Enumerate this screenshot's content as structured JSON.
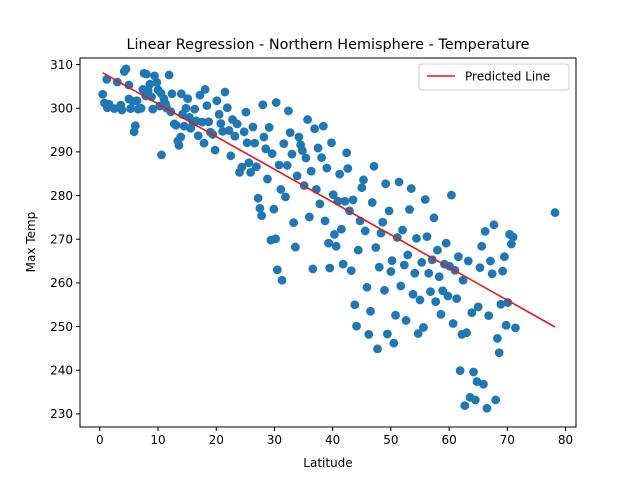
{
  "chart_data": {
    "type": "scatter",
    "title": "Linear Regression - Northern Hemisphere - Temperature",
    "xlabel": "Latitude",
    "ylabel": "Max Temp",
    "xlim": [
      -3.4,
      81.8
    ],
    "ylim": [
      227.0,
      311.5
    ],
    "xticks": [
      0,
      10,
      20,
      30,
      40,
      50,
      60,
      70,
      80
    ],
    "yticks": [
      230,
      240,
      250,
      260,
      270,
      280,
      290,
      300,
      310
    ],
    "grid": false,
    "legend": {
      "position": "top-right",
      "entries": [
        "Predicted Line"
      ]
    },
    "colors": {
      "points": "#1f77b4",
      "line": "#e41a1c",
      "axis": "#000000"
    },
    "series": [
      {
        "kind": "scatter",
        "points": [
          [
            0.5,
            303.2
          ],
          [
            0.8,
            301.2
          ],
          [
            1.2,
            306.6
          ],
          [
            1.3,
            300.1
          ],
          [
            1.6,
            300.9
          ],
          [
            2.5,
            299.9
          ],
          [
            3.0,
            306.0
          ],
          [
            3.6,
            300.7
          ],
          [
            3.8,
            299.6
          ],
          [
            4.2,
            308.4
          ],
          [
            4.5,
            309.0
          ],
          [
            5.0,
            305.3
          ],
          [
            5.0,
            302.1
          ],
          [
            5.3,
            299.9
          ],
          [
            5.7,
            301.6
          ],
          [
            5.9,
            294.6
          ],
          [
            6.1,
            296.0
          ],
          [
            6.4,
            301.7
          ],
          [
            6.6,
            299.8
          ],
          [
            7.1,
            300.0
          ],
          [
            7.4,
            304.3
          ],
          [
            7.6,
            308.0
          ],
          [
            7.9,
            302.8
          ],
          [
            8.0,
            307.8
          ],
          [
            8.3,
            304.1
          ],
          [
            8.6,
            305.5
          ],
          [
            8.9,
            302.6
          ],
          [
            9.1,
            299.8
          ],
          [
            9.4,
            307.4
          ],
          [
            9.8,
            305.9
          ],
          [
            10.0,
            304.2
          ],
          [
            10.3,
            300.5
          ],
          [
            10.5,
            303.4
          ],
          [
            10.6,
            289.3
          ],
          [
            11.0,
            302.2
          ],
          [
            11.3,
            301.0
          ],
          [
            11.5,
            300.0
          ],
          [
            11.9,
            307.6
          ],
          [
            12.2,
            299.2
          ],
          [
            12.4,
            303.3
          ],
          [
            12.8,
            296.4
          ],
          [
            13.1,
            296.1
          ],
          [
            13.4,
            292.5
          ],
          [
            13.6,
            291.5
          ],
          [
            13.9,
            293.4
          ],
          [
            14.0,
            303.3
          ],
          [
            14.2,
            298.6
          ],
          [
            14.5,
            295.9
          ],
          [
            14.8,
            300.0
          ],
          [
            15.1,
            302.2
          ],
          [
            15.4,
            297.9
          ],
          [
            15.6,
            295.4
          ],
          [
            16.0,
            296.8
          ],
          [
            16.3,
            299.8
          ],
          [
            16.6,
            297.1
          ],
          [
            16.9,
            293.7
          ],
          [
            17.2,
            303.0
          ],
          [
            17.6,
            296.8
          ],
          [
            17.9,
            292.0
          ],
          [
            18.1,
            304.3
          ],
          [
            18.4,
            300.6
          ],
          [
            18.7,
            296.9
          ],
          [
            19.0,
            294.5
          ],
          [
            19.4,
            294.0
          ],
          [
            19.8,
            290.4
          ],
          [
            20.1,
            301.7
          ],
          [
            20.5,
            298.6
          ],
          [
            20.8,
            296.5
          ],
          [
            21.1,
            294.7
          ],
          [
            21.5,
            303.7
          ],
          [
            21.9,
            300.1
          ],
          [
            22.2,
            294.9
          ],
          [
            22.5,
            289.1
          ],
          [
            22.8,
            297.4
          ],
          [
            23.2,
            293.6
          ],
          [
            23.6,
            296.4
          ],
          [
            24.0,
            285.3
          ],
          [
            24.4,
            286.5
          ],
          [
            24.8,
            294.6
          ],
          [
            25.1,
            299.1
          ],
          [
            25.3,
            292.1
          ],
          [
            25.6,
            287.5
          ],
          [
            25.9,
            285.3
          ],
          [
            26.3,
            295.7
          ],
          [
            26.6,
            292.0
          ],
          [
            26.9,
            286.6
          ],
          [
            27.2,
            279.4
          ],
          [
            27.5,
            277.1
          ],
          [
            27.8,
            275.4
          ],
          [
            28.0,
            300.8
          ],
          [
            28.2,
            293.4
          ],
          [
            28.5,
            290.7
          ],
          [
            28.8,
            283.8
          ],
          [
            29.1,
            295.6
          ],
          [
            29.4,
            269.8
          ],
          [
            29.6,
            289.6
          ],
          [
            29.9,
            276.9
          ],
          [
            30.2,
            270.1
          ],
          [
            30.3,
            301.3
          ],
          [
            30.5,
            263.0
          ],
          [
            30.8,
            287.0
          ],
          [
            31.1,
            281.4
          ],
          [
            31.3,
            260.6
          ],
          [
            31.6,
            291.9
          ],
          [
            31.9,
            279.7
          ],
          [
            32.2,
            286.9
          ],
          [
            32.4,
            299.4
          ],
          [
            32.7,
            294.4
          ],
          [
            33.0,
            289.5
          ],
          [
            33.3,
            273.8
          ],
          [
            33.6,
            268.2
          ],
          [
            33.9,
            284.5
          ],
          [
            34.2,
            293.4
          ],
          [
            34.5,
            291.6
          ],
          [
            34.8,
            290.3
          ],
          [
            35.1,
            282.3
          ],
          [
            35.4,
            288.6
          ],
          [
            35.7,
            297.4
          ],
          [
            36.0,
            275.1
          ],
          [
            36.3,
            285.6
          ],
          [
            36.6,
            263.2
          ],
          [
            36.9,
            295.3
          ],
          [
            37.2,
            281.4
          ],
          [
            37.5,
            290.9
          ],
          [
            37.8,
            278.1
          ],
          [
            38.1,
            288.7
          ],
          [
            38.4,
            295.9
          ],
          [
            38.7,
            274.2
          ],
          [
            39.0,
            286.3
          ],
          [
            39.3,
            269.1
          ],
          [
            39.5,
            263.4
          ],
          [
            39.8,
            292.1
          ],
          [
            40.1,
            280.2
          ],
          [
            40.3,
            271.1
          ],
          [
            40.6,
            268.4
          ],
          [
            40.9,
            278.7
          ],
          [
            41.2,
            284.9
          ],
          [
            41.5,
            272.3
          ],
          [
            41.8,
            264.3
          ],
          [
            42.1,
            278.7
          ],
          [
            42.4,
            289.8
          ],
          [
            42.6,
            286.2
          ],
          [
            42.9,
            276.5
          ],
          [
            43.2,
            262.8
          ],
          [
            43.5,
            279.0
          ],
          [
            43.8,
            255.0
          ],
          [
            44.1,
            250.1
          ],
          [
            44.4,
            267.5
          ],
          [
            44.7,
            274.2
          ],
          [
            45.0,
            281.8
          ],
          [
            45.3,
            283.6
          ],
          [
            45.6,
            271.9
          ],
          [
            45.9,
            259.0
          ],
          [
            46.2,
            248.2
          ],
          [
            46.5,
            253.5
          ],
          [
            46.8,
            278.4
          ],
          [
            47.1,
            286.7
          ],
          [
            47.4,
            268.1
          ],
          [
            47.7,
            244.9
          ],
          [
            48.0,
            263.6
          ],
          [
            48.3,
            271.4
          ],
          [
            48.6,
            273.9
          ],
          [
            48.9,
            258.3
          ],
          [
            49.1,
            282.7
          ],
          [
            49.4,
            248.3
          ],
          [
            49.7,
            276.5
          ],
          [
            50.0,
            262.6
          ],
          [
            50.2,
            265.1
          ],
          [
            50.5,
            246.2
          ],
          [
            50.8,
            252.6
          ],
          [
            51.1,
            270.4
          ],
          [
            51.4,
            283.1
          ],
          [
            51.7,
            259.3
          ],
          [
            52.0,
            272.1
          ],
          [
            52.3,
            264.1
          ],
          [
            52.6,
            251.4
          ],
          [
            52.9,
            266.4
          ],
          [
            53.2,
            276.8
          ],
          [
            53.5,
            281.6
          ],
          [
            53.8,
            257.4
          ],
          [
            54.1,
            262.2
          ],
          [
            54.4,
            270.2
          ],
          [
            54.7,
            248.4
          ],
          [
            55.0,
            256.1
          ],
          [
            55.3,
            264.7
          ],
          [
            55.6,
            249.8
          ],
          [
            55.9,
            279.1
          ],
          [
            56.2,
            270.6
          ],
          [
            56.5,
            262.2
          ],
          [
            56.8,
            258.0
          ],
          [
            57.1,
            265.3
          ],
          [
            57.4,
            274.9
          ],
          [
            57.7,
            255.7
          ],
          [
            58.0,
            267.5
          ],
          [
            58.3,
            261.4
          ],
          [
            58.6,
            252.8
          ],
          [
            58.9,
            258.2
          ],
          [
            59.2,
            264.3
          ],
          [
            59.5,
            269.1
          ],
          [
            59.8,
            257.0
          ],
          [
            60.1,
            263.8
          ],
          [
            60.4,
            280.1
          ],
          [
            60.7,
            250.7
          ],
          [
            61.0,
            262.9
          ],
          [
            61.3,
            256.4
          ],
          [
            61.6,
            266.0
          ],
          [
            61.9,
            239.9
          ],
          [
            62.2,
            248.2
          ],
          [
            62.4,
            260.6
          ],
          [
            62.7,
            231.9
          ],
          [
            63.0,
            248.6
          ],
          [
            63.3,
            265.0
          ],
          [
            63.6,
            233.8
          ],
          [
            63.9,
            253.2
          ],
          [
            64.2,
            239.6
          ],
          [
            64.5,
            233.2
          ],
          [
            64.8,
            237.4
          ],
          [
            65.0,
            254.5
          ],
          [
            65.3,
            263.5
          ],
          [
            65.6,
            268.4
          ],
          [
            65.9,
            236.8
          ],
          [
            66.2,
            271.8
          ],
          [
            66.5,
            231.3
          ],
          [
            66.8,
            252.5
          ],
          [
            67.1,
            265.0
          ],
          [
            67.4,
            262.1
          ],
          [
            67.7,
            273.3
          ],
          [
            68.0,
            233.2
          ],
          [
            68.3,
            247.3
          ],
          [
            68.6,
            244.0
          ],
          [
            68.9,
            255.1
          ],
          [
            69.2,
            262.7
          ],
          [
            69.5,
            266.0
          ],
          [
            69.8,
            250.3
          ],
          [
            70.1,
            255.5
          ],
          [
            70.4,
            271.1
          ],
          [
            70.7,
            268.9
          ],
          [
            71.0,
            270.5
          ],
          [
            71.4,
            249.7
          ],
          [
            78.2,
            276.1
          ]
        ]
      },
      {
        "kind": "line",
        "name": "Predicted Line",
        "x": [
          0.5,
          78.2
        ],
        "y": [
          308.1,
          249.9
        ]
      }
    ]
  }
}
